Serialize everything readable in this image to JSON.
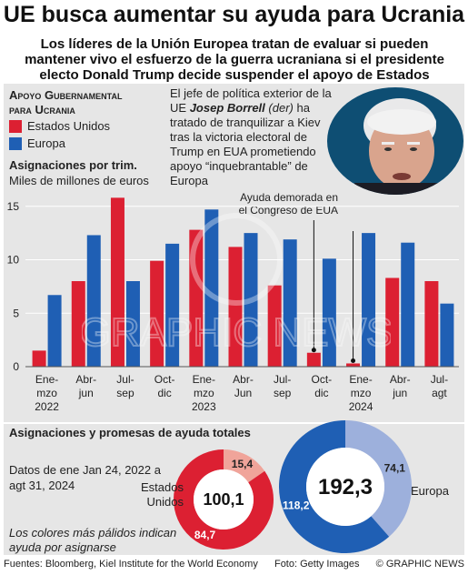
{
  "title": "UE busca aumentar su ayuda para Ucrania",
  "subtitle": "Los líderes de la Unión Europea tratan de evaluar si pueden mantener vivo el esfuerzo de la guerra ucraniana si el presidente electo Donald Trump decide suspender el apoyo de Estados Unidos",
  "legend": {
    "title_line1": "Apoyo Gubernamental",
    "title_line2": "para Ucrania",
    "us": "Estados Unidos",
    "eu": "Europa",
    "us_color": "#dc2032",
    "eu_color": "#1f5fb4",
    "us_pale_color": "#f0a49a",
    "eu_pale_color": "#9db0dc"
  },
  "quote": {
    "line1": "El jefe de política exterior de la UE",
    "name": "Josep Borrell",
    "name_note": "(der)",
    "rest": "ha tratado de tranquilizar a Kiev tras la victoria electoral de Trump en EUA prometiendo apoyo “inquebrantable” de Europa"
  },
  "chart_data": [
    {
      "type": "bar",
      "title": "Asignaciones por trim.",
      "ylabel": "Miles de millones de euros",
      "ylim": [
        0,
        16
      ],
      "yticks": [
        0,
        5,
        10,
        15
      ],
      "grid": true,
      "categories": [
        [
          "Ene-",
          "mzo",
          "2022"
        ],
        [
          "Abr-",
          "jun"
        ],
        [
          "Jul-",
          "sep"
        ],
        [
          "Oct-",
          "dic"
        ],
        [
          "Ene-",
          "mzo",
          "2023"
        ],
        [
          "Abr-",
          "Jun"
        ],
        [
          "Jul-",
          "sep"
        ],
        [
          "Oct-",
          "dic"
        ],
        [
          "Ene-",
          "mzo",
          "2024"
        ],
        [
          "Abr-",
          "jun"
        ],
        [
          "Jul-",
          "agt"
        ]
      ],
      "series": [
        {
          "name": "Estados Unidos",
          "values": [
            1.5,
            8.0,
            15.8,
            9.9,
            12.8,
            11.2,
            7.6,
            1.3,
            0.3,
            8.3,
            8.0
          ]
        },
        {
          "name": "Europa",
          "values": [
            6.7,
            12.3,
            8.0,
            11.5,
            14.7,
            12.5,
            11.9,
            10.1,
            12.5,
            11.6,
            5.9
          ]
        }
      ],
      "annotation": "Ayuda demorada en el Congreso de EUA"
    },
    {
      "type": "pie",
      "title": "Asignaciones y promesas de ayuda totales",
      "date_range": "Datos de ene Jan 24, 2022 a agt 31, 2024",
      "donuts": [
        {
          "name": "Estados Unidos",
          "total": "100,1",
          "slices": [
            {
              "label": "84,7",
              "value": 84.7,
              "pale": false
            },
            {
              "label": "15,4",
              "value": 15.4,
              "pale": true
            }
          ]
        },
        {
          "name": "Europa",
          "total": "192,3",
          "slices": [
            {
              "label": "118,2",
              "value": 118.2,
              "pale": false
            },
            {
              "label": "74,1",
              "value": 74.1,
              "pale": true
            }
          ]
        }
      ],
      "note": "Los colores más pálidos indican ayuda por asignarse"
    }
  ],
  "footer": {
    "sources": "Fuentes: Bloomberg, Kiel Institute for the World Economy",
    "photo": "Foto: Getty Images",
    "copyright": "© GRAPHIC NEWS"
  }
}
